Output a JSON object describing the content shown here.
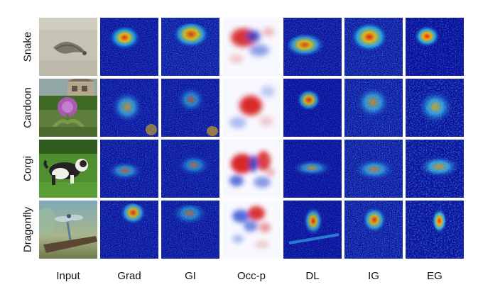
{
  "figure": {
    "row_labels": [
      "Snake",
      "Cardoon",
      "Corgi",
      "Dragonfly"
    ],
    "column_labels": [
      "Input",
      "Grad",
      "GI",
      "Occ-p",
      "DL",
      "IG",
      "EG"
    ],
    "colors": {
      "saliency_background": "#0a0f9a",
      "saliency_hot": "#ff2a00",
      "occlusion_positive": "#d71e1e",
      "occlusion_negative": "#1a3ccc",
      "occlusion_neutral": "#f8f8ff"
    }
  }
}
